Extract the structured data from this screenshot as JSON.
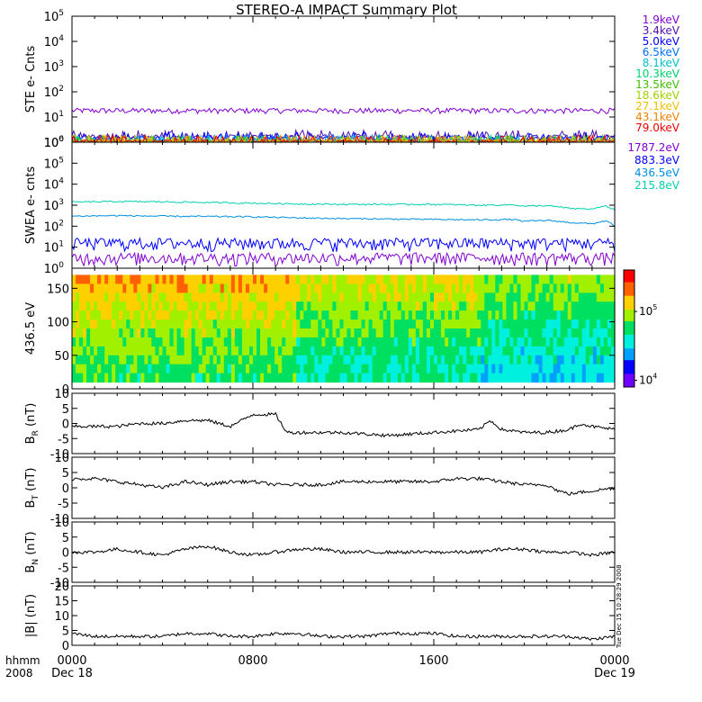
{
  "title": "STEREO-A IMPACT Summary Plot",
  "footer": {
    "unit_label": "hhmm",
    "year": "2008",
    "ticks": [
      {
        "label": "0000",
        "date": "Dec 18",
        "hour": 0
      },
      {
        "label": "0800",
        "date": "",
        "hour": 8
      },
      {
        "label": "1600",
        "date": "",
        "hour": 16
      },
      {
        "label": "0000",
        "date": "Dec 19",
        "hour": 24
      }
    ]
  },
  "timestamp_note": "Tue Dec 15 10:28:29 2008",
  "chart_data": [
    {
      "id": "ste",
      "type": "line",
      "ylabel": "STE e- Cnts",
      "yscale": "log",
      "ylim": [
        1,
        100000
      ],
      "yticks": [
        {
          "base": "10",
          "exp": "0"
        },
        {
          "base": "10",
          "exp": "1"
        },
        {
          "base": "10",
          "exp": "2"
        },
        {
          "base": "10",
          "exp": "3"
        },
        {
          "base": "10",
          "exp": "4"
        },
        {
          "base": "10",
          "exp": "5"
        }
      ],
      "xlim_hours": [
        0,
        24
      ],
      "series": [
        {
          "name": "1.9keV",
          "color": "#8000d0",
          "level": 18
        },
        {
          "name": "3.4keV",
          "color": "#5010b0",
          "level": 1.6
        },
        {
          "name": "5.0keV",
          "color": "#0000ff",
          "level": 1.4
        },
        {
          "name": "6.5keV",
          "color": "#0070ff",
          "level": 1.1
        },
        {
          "name": "8.1keV",
          "color": "#00c0d0",
          "level": 1.0
        },
        {
          "name": "10.3keV",
          "color": "#00d070",
          "level": 1.0
        },
        {
          "name": "13.5keV",
          "color": "#40c000",
          "level": 1.0
        },
        {
          "name": "18.6keV",
          "color": "#a0d000",
          "level": 1.0
        },
        {
          "name": "27.1keV",
          "color": "#f0c000",
          "level": 1.0
        },
        {
          "name": "43.1keV",
          "color": "#f08000",
          "level": 1.0
        },
        {
          "name": "79.0keV",
          "color": "#f00000",
          "level": 1.0
        }
      ]
    },
    {
      "id": "swea",
      "type": "line",
      "ylabel": "SWEA e- cnts",
      "yscale": "log",
      "ylim": [
        1,
        1000000
      ],
      "yticks": [
        {
          "base": "10",
          "exp": "0"
        },
        {
          "base": "10",
          "exp": "1"
        },
        {
          "base": "10",
          "exp": "2"
        },
        {
          "base": "10",
          "exp": "3"
        },
        {
          "base": "10",
          "exp": "4"
        },
        {
          "base": "10",
          "exp": "5"
        },
        {
          "base": "10",
          "exp": "6"
        }
      ],
      "xlim_hours": [
        0,
        24
      ],
      "series": [
        {
          "name": "1787.2eV",
          "color": "#8000d0",
          "x": [
            0,
            24
          ],
          "y": [
            3,
            3
          ]
        },
        {
          "name": "883.3eV",
          "color": "#0000ff",
          "x": [
            0,
            24
          ],
          "y": [
            15,
            15
          ]
        },
        {
          "name": "436.5eV",
          "color": "#0090e0",
          "x": [
            0,
            2,
            4,
            6,
            8,
            10,
            12,
            14,
            16,
            18,
            19.5,
            20,
            21,
            22,
            23,
            23.6,
            24
          ],
          "y": [
            300,
            320,
            300,
            290,
            280,
            250,
            230,
            220,
            210,
            200,
            210,
            170,
            190,
            150,
            130,
            180,
            100
          ]
        },
        {
          "name": "215.8eV",
          "color": "#00d0b0",
          "x": [
            0,
            2,
            4,
            6,
            8,
            10,
            12,
            14,
            16,
            18,
            19.5,
            20,
            21,
            22,
            23,
            23.6,
            24
          ],
          "y": [
            1400,
            1500,
            1450,
            1350,
            1250,
            1150,
            1100,
            1100,
            1100,
            1000,
            1050,
            900,
            950,
            700,
            650,
            900,
            600
          ]
        }
      ]
    },
    {
      "id": "pad",
      "type": "heatmap",
      "ylabel": "436.5 eV",
      "ylim": [
        0,
        180
      ],
      "yticks": [
        "0",
        "50",
        "100",
        "150"
      ],
      "xlim_hours": [
        0,
        24
      ],
      "colorbar": {
        "scale": "log",
        "range": [
          8000,
          400000
        ],
        "ticks": [
          {
            "base": "10",
            "exp": "4",
            "value": 10000
          },
          {
            "base": "10",
            "exp": "5",
            "value": 100000
          }
        ],
        "colors": [
          "#7000ff",
          "#0000ff",
          "#00a0ff",
          "#00f0e0",
          "#00e060",
          "#a0f000",
          "#ffd000",
          "#ff6000",
          "#ff0000"
        ]
      }
    },
    {
      "id": "br",
      "type": "line",
      "ylabel_main": "B",
      "ylabel_sub": "R",
      "ylabel_unit": " (nT)",
      "ylim": [
        -10,
        10
      ],
      "yticks": [
        "-10",
        "-5",
        "0",
        "5",
        "10"
      ],
      "xlim_hours": [
        0,
        24
      ],
      "x": [
        0,
        1,
        2,
        3,
        4,
        5,
        6,
        7,
        8,
        9,
        9.5,
        10,
        12,
        14,
        16,
        18,
        18.5,
        19,
        20,
        21,
        22,
        22.5,
        23,
        24
      ],
      "y": [
        -1,
        -1,
        -1,
        0,
        0,
        1,
        1,
        -1,
        3,
        3,
        -3,
        -3,
        -3,
        -4,
        -3,
        -2,
        1,
        -2,
        -3,
        -3,
        -2,
        0,
        -1,
        -2
      ]
    },
    {
      "id": "bt",
      "type": "line",
      "ylabel_main": "B",
      "ylabel_sub": "T",
      "ylabel_unit": " (nT)",
      "ylim": [
        -10,
        10
      ],
      "yticks": [
        "-10",
        "-5",
        "0",
        "5",
        "10"
      ],
      "xlim_hours": [
        0,
        24
      ],
      "x": [
        0,
        1,
        2,
        3,
        4,
        5,
        6,
        7,
        8,
        9,
        10,
        11,
        12,
        13,
        14,
        15,
        16,
        17,
        18,
        19,
        20,
        21,
        21.5,
        22,
        23,
        24
      ],
      "y": [
        3,
        3,
        2,
        1,
        0,
        2,
        1,
        2,
        2,
        1,
        1,
        1,
        2,
        2,
        2,
        2,
        2,
        3,
        3,
        2,
        1,
        1,
        -1,
        -2,
        -1,
        0
      ]
    },
    {
      "id": "bn",
      "type": "line",
      "ylabel_main": "B",
      "ylabel_sub": "N",
      "ylabel_unit": " (nT)",
      "ylim": [
        -10,
        10
      ],
      "yticks": [
        "-10",
        "-5",
        "0",
        "5",
        "10"
      ],
      "xlim_hours": [
        0,
        24
      ],
      "x": [
        0,
        1,
        2,
        3,
        4,
        5,
        6,
        7,
        8,
        9,
        10,
        11,
        12,
        13,
        14,
        15,
        16,
        17,
        18,
        19,
        20,
        21,
        22,
        23,
        24
      ],
      "y": [
        0,
        0,
        1,
        0,
        -1,
        1,
        2,
        0,
        -1,
        0,
        1,
        1,
        0,
        0,
        0,
        0,
        0,
        0,
        0,
        1,
        1,
        0,
        0,
        -1,
        0
      ]
    },
    {
      "id": "bmag",
      "type": "line",
      "ylabel_main": "|B|",
      "ylabel_sub": "",
      "ylabel_unit": " (nT)",
      "ylim": [
        0,
        20
      ],
      "yticks": [
        "0",
        "5",
        "10",
        "15",
        "20"
      ],
      "xlim_hours": [
        0,
        24
      ],
      "x": [
        0,
        1,
        2,
        3,
        4,
        5,
        6,
        7,
        8,
        9,
        10,
        11,
        12,
        13,
        14,
        15,
        16,
        17,
        18,
        19,
        20,
        21,
        22,
        23,
        24
      ],
      "y": [
        4,
        3,
        3,
        3,
        3,
        4,
        4,
        3,
        3,
        4,
        4,
        3,
        3,
        3,
        4,
        4,
        4,
        3,
        3,
        3,
        3,
        3,
        3,
        2,
        3
      ]
    }
  ]
}
